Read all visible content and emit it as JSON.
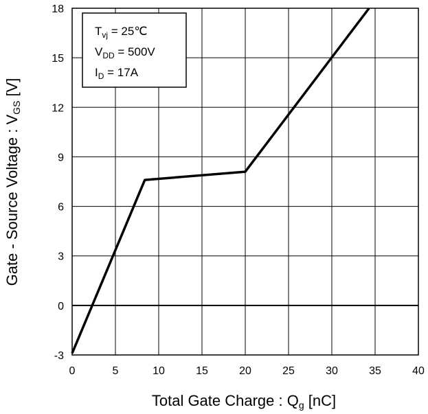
{
  "chart_data": {
    "type": "line",
    "title": "",
    "xlabel": {
      "main": "Total Gate Charge : Q",
      "sub": "g",
      "unit": " [nC]"
    },
    "ylabel": {
      "main": "Gate - Source Voltage : V",
      "sub": "GS",
      "unit": " [V]"
    },
    "xlim": [
      0,
      40
    ],
    "ylim": [
      -3,
      18
    ],
    "xticks": [
      "0",
      "5",
      "10",
      "15",
      "20",
      "25",
      "30",
      "35",
      "40"
    ],
    "yticks": [
      "-3",
      "0",
      "3",
      "6",
      "9",
      "12",
      "15",
      "18"
    ],
    "grid": true,
    "zero_line": 0,
    "series": [
      {
        "x": [
          0,
          8.4,
          20,
          34.3
        ],
        "y": [
          -2.9,
          7.6,
          8.1,
          18
        ]
      }
    ],
    "annotation": {
      "lines": [
        {
          "main": "T",
          "sub": "vj",
          "rest": " = 25℃"
        },
        {
          "main": "V",
          "sub": "DD",
          "rest": " = 500V"
        },
        {
          "main": "I",
          "sub": "D",
          "rest": " = 17A"
        }
      ]
    }
  }
}
